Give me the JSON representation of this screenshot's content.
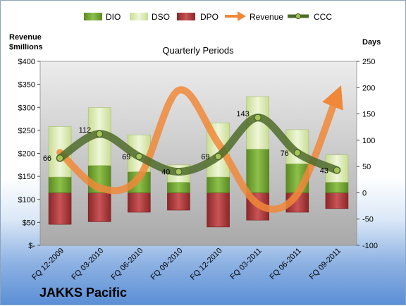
{
  "chart_data": {
    "type": "bar",
    "title": "Quarterly Periods",
    "company": "JAKKS Pacific",
    "left_axis_label": [
      "Revenue",
      "$millions"
    ],
    "right_axis_label": "Days",
    "left_ticks": [
      "$-",
      "$50",
      "$100",
      "$150",
      "$200",
      "$250",
      "$300",
      "$350",
      "$400"
    ],
    "left_range": [
      0,
      400
    ],
    "right_ticks": [
      "-100",
      "-50",
      "0",
      "50",
      "100",
      "150",
      "200",
      "250"
    ],
    "right_range": [
      -100,
      250
    ],
    "categories": [
      "FQ 12-2009",
      "FQ 03-2010",
      "FQ 06-2010",
      "FQ 09-2010",
      "FQ 12-2010",
      "FQ 03-2011",
      "FQ 06-2011",
      "FQ 09-2011"
    ],
    "legend": [
      "DIO",
      "DSO",
      "DPO",
      "Revenue",
      "CCC"
    ],
    "series": [
      {
        "name": "DIO",
        "axis": "right",
        "values": [
          30,
          52,
          40,
          20,
          30,
          83,
          55,
          20
        ]
      },
      {
        "name": "DSO",
        "axis": "right",
        "values": [
          96,
          110,
          70,
          33,
          103,
          100,
          65,
          52
        ]
      },
      {
        "name": "DPO",
        "axis": "right",
        "values": [
          -60,
          -55,
          -37,
          -33,
          -65,
          -52,
          -37,
          -30
        ]
      },
      {
        "name": "Revenue",
        "axis": "left",
        "values": [
          202,
          125,
          148,
          337,
          222,
          90,
          112,
          325
        ]
      },
      {
        "name": "CCC",
        "axis": "right",
        "values": [
          66,
          112,
          69,
          40,
          69,
          143,
          76,
          43
        ]
      }
    ],
    "ccc_labels": [
      "66",
      "112",
      "69",
      "40",
      "69",
      "143",
      "76",
      "43"
    ],
    "colors": {
      "DIO": "#77a032",
      "DSO": "#d9e8b0",
      "DPO": "#b8383a",
      "Revenue": "#f0883a",
      "CCC": "#4f6b2a",
      "plot_bg": "#c4c4c4"
    }
  }
}
